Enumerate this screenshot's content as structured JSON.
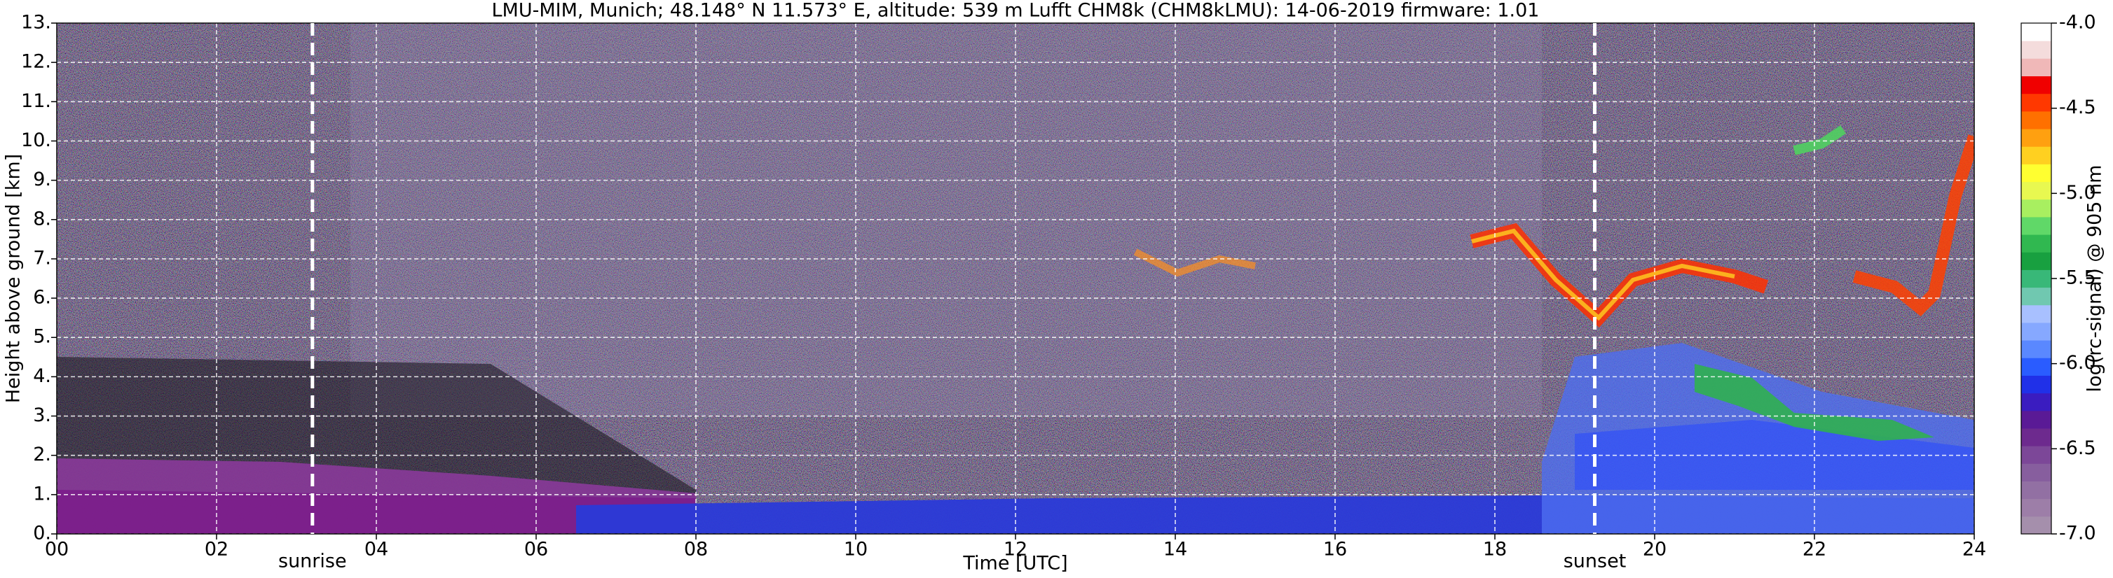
{
  "chart_data": {
    "type": "heatmap",
    "title": "LMU-MIM, Munich; 48.148° N 11.573° E, altitude: 539 m    Lufft CHM8k (CHM8kLMU): 14-06-2019    firmware: 1.01",
    "x_label": "Time [UTC]",
    "y_label": "Height above ground [km]",
    "colorbar_label": "log(rc-signal) @ 905 nm",
    "xlim": [
      0,
      24
    ],
    "xticks": [
      {
        "value": 0,
        "label": "00"
      },
      {
        "value": 2,
        "label": "02"
      },
      {
        "value": 4,
        "label": "04"
      },
      {
        "value": 6,
        "label": "06"
      },
      {
        "value": 8,
        "label": "08"
      },
      {
        "value": 10,
        "label": "10"
      },
      {
        "value": 12,
        "label": "12"
      },
      {
        "value": 14,
        "label": "14"
      },
      {
        "value": 16,
        "label": "16"
      },
      {
        "value": 18,
        "label": "18"
      },
      {
        "value": 20,
        "label": "20"
      },
      {
        "value": 22,
        "label": "22"
      },
      {
        "value": 24,
        "label": "24"
      }
    ],
    "ylim": [
      0,
      13
    ],
    "yticks": [
      {
        "value": 0,
        "label": "0."
      },
      {
        "value": 1,
        "label": "1."
      },
      {
        "value": 2,
        "label": "2."
      },
      {
        "value": 3,
        "label": "3."
      },
      {
        "value": 4,
        "label": "4."
      },
      {
        "value": 5,
        "label": "5."
      },
      {
        "value": 6,
        "label": "6."
      },
      {
        "value": 7,
        "label": "7."
      },
      {
        "value": 8,
        "label": "8."
      },
      {
        "value": 9,
        "label": "9."
      },
      {
        "value": 10,
        "label": "10."
      },
      {
        "value": 11,
        "label": "11."
      },
      {
        "value": 12,
        "label": "12."
      },
      {
        "value": 13,
        "label": "13."
      }
    ],
    "clim": [
      -7,
      -4
    ],
    "cticks": [
      {
        "value": -4,
        "label": "-4.0"
      },
      {
        "value": -4.5,
        "label": "-4.5"
      },
      {
        "value": -5,
        "label": "-5.0"
      },
      {
        "value": -5.5,
        "label": "-5.5"
      },
      {
        "value": -6,
        "label": "-6.0"
      },
      {
        "value": -6.5,
        "label": "-6.5"
      },
      {
        "value": -7,
        "label": "-7.0"
      }
    ],
    "colorbar_colors": [
      "#a58fac",
      "#9d7ea8",
      "#9270a3",
      "#875e9e",
      "#7c4798",
      "#6d2a8e",
      "#5a1a96",
      "#3a1cc0",
      "#2030e8",
      "#2a5cff",
      "#5a88ff",
      "#86a8ff",
      "#a8c0ff",
      "#70c8b0",
      "#38b878",
      "#18a040",
      "#30b850",
      "#60d868",
      "#a8ef60",
      "#e8f850",
      "#ffff30",
      "#ffd020",
      "#ffa010",
      "#ff7000",
      "#ff3800",
      "#f00000",
      "#f0b8b8",
      "#f4dcdc",
      "#ffffff"
    ],
    "grid": true,
    "annotations": [
      {
        "text": "sunrise",
        "x": 3.2
      },
      {
        "text": "sunset",
        "x": 19.25
      }
    ]
  }
}
